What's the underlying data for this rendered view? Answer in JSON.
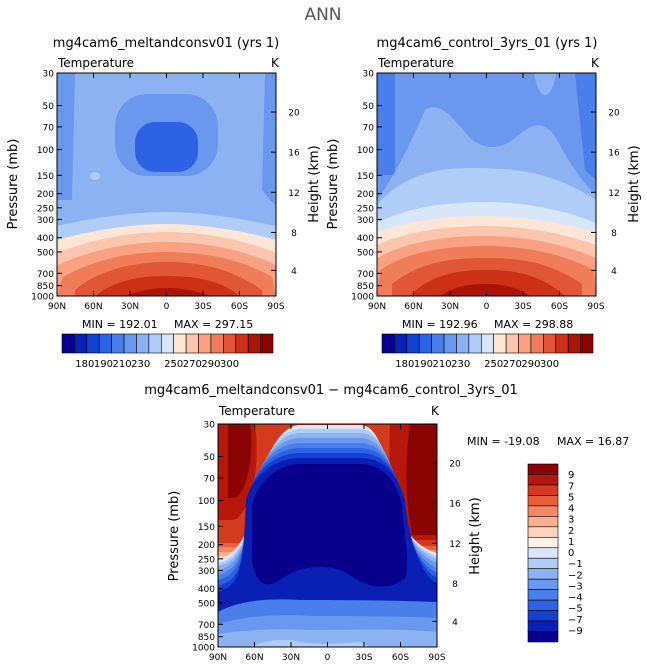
{
  "figure": {
    "title": "ANN"
  },
  "colors": {
    "abs": [
      "#08008c",
      "#0a1fb4",
      "#1440d4",
      "#2e62e4",
      "#4a7ee8",
      "#6a98ee",
      "#8cb2f2",
      "#b0cdf7",
      "#d8e6fa",
      "#fde6d6",
      "#fcc6ae",
      "#f8a283",
      "#f07d5a",
      "#e05636",
      "#cc3016",
      "#ab1408",
      "#880404"
    ],
    "diff": [
      "#08008c",
      "#0a1fb4",
      "#1440d4",
      "#2e62e4",
      "#4a7ee8",
      "#6a98ee",
      "#8cb2f2",
      "#b0cdf7",
      "#d8e6fa",
      "#fdf2ea",
      "#fcd3be",
      "#f9ae90",
      "#f48866",
      "#e85f3c",
      "#d43a1c",
      "#b8180a",
      "#8a0404"
    ]
  },
  "chart_data": [
    {
      "type": "heatmap",
      "id": "left",
      "title": "mg4cam6_meltandconsv01 (yrs 1)",
      "variable": "Temperature",
      "units": "K",
      "ylabel": "Pressure (mb)",
      "ylabel_right": "Height (km)",
      "x_ticks": [
        "90N",
        "60N",
        "30N",
        "0",
        "30S",
        "60S",
        "90S"
      ],
      "y_ticks": [
        "30",
        "50",
        "70",
        "100",
        "150",
        "200",
        "250",
        "300",
        "400",
        "500",
        "700",
        "850",
        "1000"
      ],
      "y_ticks_right": [
        "20",
        "16",
        "12",
        "8",
        "4"
      ],
      "min_label": "MIN = 192.01",
      "max_label": "MAX = 297.15",
      "stats": {
        "min": 192.01,
        "max": 297.15
      },
      "colorbar_labels": [
        "180",
        "190",
        "210",
        "230",
        "250",
        "270",
        "290",
        "300"
      ]
    },
    {
      "type": "heatmap",
      "id": "right",
      "title": "mg4cam6_control_3yrs_01 (yrs 1)",
      "variable": "Temperature",
      "units": "K",
      "ylabel": "Pressure (mb)",
      "ylabel_right": "Height (km)",
      "x_ticks": [
        "90N",
        "60N",
        "30N",
        "0",
        "30S",
        "60S",
        "90S"
      ],
      "y_ticks": [
        "30",
        "50",
        "70",
        "100",
        "150",
        "200",
        "250",
        "300",
        "400",
        "500",
        "700",
        "850",
        "1000"
      ],
      "y_ticks_right": [
        "20",
        "16",
        "12",
        "8",
        "4"
      ],
      "min_label": "MIN = 192.96",
      "max_label": "MAX = 298.88",
      "stats": {
        "min": 192.96,
        "max": 298.88
      },
      "colorbar_labels": [
        "180",
        "190",
        "210",
        "230",
        "250",
        "270",
        "290",
        "300"
      ]
    },
    {
      "type": "heatmap",
      "id": "diff",
      "title": "mg4cam6_meltandconsv01 − mg4cam6_control_3yrs_01",
      "variable": "Temperature",
      "units": "K",
      "ylabel": "Pressure (mb)",
      "ylabel_right": "Height (km)",
      "x_ticks": [
        "90N",
        "60N",
        "30N",
        "0",
        "30S",
        "60S",
        "90S"
      ],
      "y_ticks": [
        "30",
        "50",
        "70",
        "100",
        "150",
        "200",
        "250",
        "300",
        "400",
        "500",
        "700",
        "850",
        "1000"
      ],
      "y_ticks_right": [
        "20",
        "16",
        "12",
        "8",
        "4"
      ],
      "min_label": "MIN = -19.08",
      "max_label": "MAX =   16.87",
      "stats": {
        "min": -19.08,
        "max": 16.87
      },
      "colorbar_labels": [
        "9",
        "7",
        "5",
        "4",
        "3",
        "2",
        "1",
        "0",
        "−1",
        "−2",
        "−3",
        "−4",
        "−5",
        "−7",
        "−9"
      ]
    }
  ]
}
